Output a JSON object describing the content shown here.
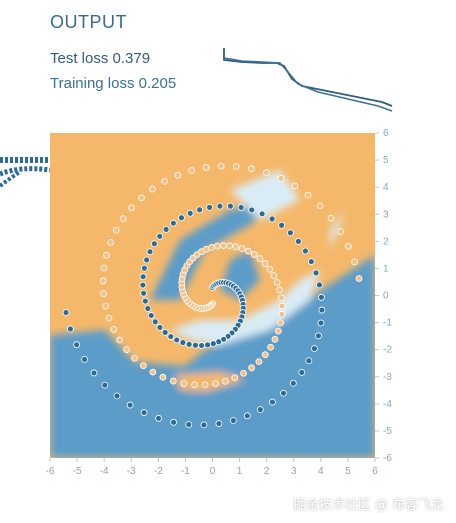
{
  "header": {
    "title": "OUTPUT",
    "test_loss_label": "Test loss 0.379",
    "training_loss_label": "Training loss 0.205"
  },
  "colors": {
    "positive": "#f5b86a",
    "negative": "#5b9cc9",
    "point_negative": "#2a6b9c",
    "point_positive": "#f6c086",
    "axis_text": "#8aa7b8",
    "loss_line": "#2f5d7c"
  },
  "axes": {
    "x_ticks": [
      "-6",
      "-5",
      "-4",
      "-3",
      "-2",
      "-1",
      "0",
      "1",
      "2",
      "3",
      "4",
      "5",
      "6"
    ],
    "y_ticks": [
      "6",
      "5",
      "4",
      "3",
      "2",
      "1",
      "0",
      "-1",
      "-2",
      "-3",
      "-4",
      "-5",
      "-6"
    ]
  },
  "dataset": {
    "type": "spiral",
    "range": [
      -6,
      6
    ]
  },
  "watermark": "掘金技术社区 @ 布客飞龙"
}
